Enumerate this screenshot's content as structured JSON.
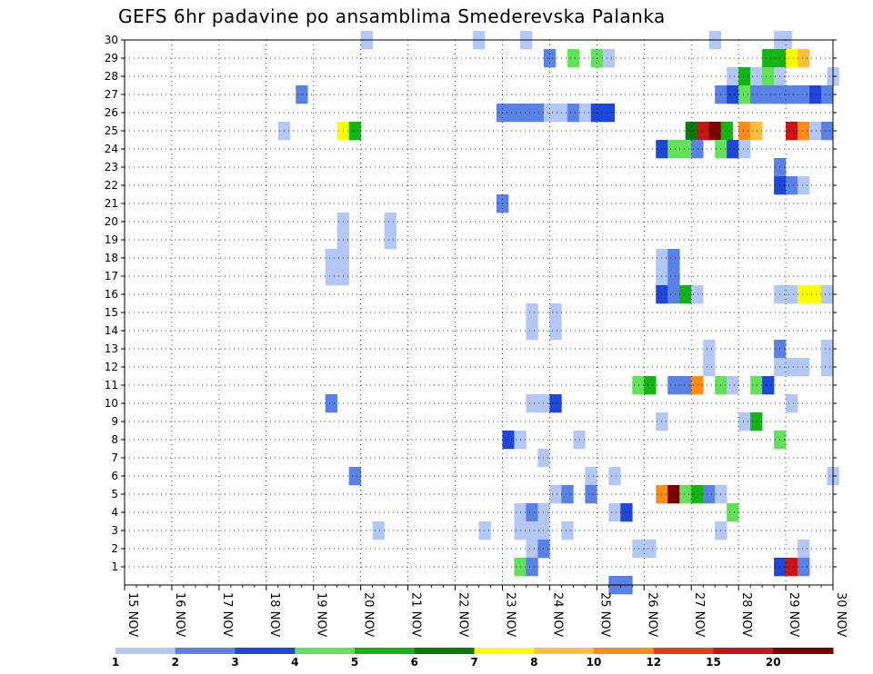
{
  "chart_data": {
    "type": "heatmap",
    "title": "GEFS 6hr padavine po ansamblima Smederevska Palanka",
    "y_ticks": [
      1,
      2,
      3,
      4,
      5,
      6,
      7,
      8,
      9,
      10,
      11,
      12,
      13,
      14,
      15,
      16,
      17,
      18,
      19,
      20,
      21,
      22,
      23,
      24,
      25,
      26,
      27,
      28,
      29,
      30
    ],
    "x_ticks": [
      "15 NOV",
      "16 NOV",
      "17 NOV",
      "18 NOV",
      "19 NOV",
      "20 NOV",
      "21 NOV",
      "22 NOV",
      "23 NOV",
      "24 NOV",
      "25 NOV",
      "26 NOV",
      "27 NOV",
      "28 NOV",
      "29 NOV",
      "30 NOV"
    ],
    "x_start_day": 15,
    "x_end_day": 30,
    "y_range": [
      0,
      30
    ],
    "grid": true,
    "colorbar": {
      "labels": [
        "1",
        "2",
        "3",
        "4",
        "5",
        "6",
        "7",
        "8",
        "10",
        "12",
        "15",
        "20"
      ],
      "colors": [
        "#b4c8f8",
        "#5a82e6",
        "#1e46d7",
        "#64e15a",
        "#14b414",
        "#0a780a",
        "#ffff00",
        "#ffbe3c",
        "#ff8c14",
        "#e63c14",
        "#c81414",
        "#780000"
      ]
    },
    "cells": [
      {
        "day": 20.125,
        "m": 30,
        "v": 1
      },
      {
        "day": 22.5,
        "m": 30,
        "v": 1
      },
      {
        "day": 23.5,
        "m": 30,
        "v": 1
      },
      {
        "day": 27.5,
        "m": 30,
        "v": 1
      },
      {
        "day": 28.875,
        "m": 30,
        "v": 1
      },
      {
        "day": 29,
        "m": 30,
        "v": 1
      },
      {
        "day": 24,
        "m": 29,
        "v": 2
      },
      {
        "day": 24.5,
        "m": 29,
        "v": 4
      },
      {
        "day": 25,
        "m": 29,
        "v": 4
      },
      {
        "day": 25.25,
        "m": 29,
        "v": 1
      },
      {
        "day": 28.625,
        "m": 29,
        "v": 5
      },
      {
        "day": 28.875,
        "m": 29,
        "v": 5
      },
      {
        "day": 29,
        "m": 29,
        "v": 5
      },
      {
        "day": 29.125,
        "m": 29,
        "v": 7
      },
      {
        "day": 29.375,
        "m": 29,
        "v": 8
      },
      {
        "day": 27.875,
        "m": 28,
        "v": 1
      },
      {
        "day": 28.125,
        "m": 28,
        "v": 5
      },
      {
        "day": 28.375,
        "m": 28,
        "v": 1
      },
      {
        "day": 28.625,
        "m": 28,
        "v": 4
      },
      {
        "day": 28.875,
        "m": 28,
        "v": 1
      },
      {
        "day": 30,
        "m": 28,
        "v": 1
      },
      {
        "day": 18.75,
        "m": 27,
        "v": 2
      },
      {
        "day": 27.625,
        "m": 27,
        "v": 2
      },
      {
        "day": 27.875,
        "m": 27,
        "v": 3
      },
      {
        "day": 28.125,
        "m": 27,
        "v": 4
      },
      {
        "day": 28.375,
        "m": 27,
        "v": 2
      },
      {
        "day": 28.625,
        "m": 27,
        "v": 2
      },
      {
        "day": 28.875,
        "m": 27,
        "v": 2
      },
      {
        "day": 29.125,
        "m": 27,
        "v": 2
      },
      {
        "day": 29.375,
        "m": 27,
        "v": 2
      },
      {
        "day": 29.625,
        "m": 27,
        "v": 3
      },
      {
        "day": 29.875,
        "m": 27,
        "v": 2
      },
      {
        "day": 23,
        "m": 26,
        "v": 2
      },
      {
        "day": 23.25,
        "m": 26,
        "v": 2
      },
      {
        "day": 23.5,
        "m": 26,
        "v": 2
      },
      {
        "day": 23.75,
        "m": 26,
        "v": 2
      },
      {
        "day": 24,
        "m": 26,
        "v": 1
      },
      {
        "day": 24.25,
        "m": 26,
        "v": 1
      },
      {
        "day": 24.5,
        "m": 26,
        "v": 2
      },
      {
        "day": 24.75,
        "m": 26,
        "v": 1
      },
      {
        "day": 25,
        "m": 26,
        "v": 3
      },
      {
        "day": 25.25,
        "m": 26,
        "v": 3
      },
      {
        "day": 18.375,
        "m": 25,
        "v": 1
      },
      {
        "day": 19.625,
        "m": 25,
        "v": 7
      },
      {
        "day": 19.875,
        "m": 25,
        "v": 5
      },
      {
        "day": 27,
        "m": 25,
        "v": 6
      },
      {
        "day": 27.25,
        "m": 25,
        "v": 15
      },
      {
        "day": 27.5,
        "m": 25,
        "v": 20
      },
      {
        "day": 27.75,
        "m": 25,
        "v": 5
      },
      {
        "day": 28.125,
        "m": 25,
        "v": 10
      },
      {
        "day": 28.375,
        "m": 25,
        "v": 8
      },
      {
        "day": 29.125,
        "m": 25,
        "v": 15
      },
      {
        "day": 29.375,
        "m": 25,
        "v": 10
      },
      {
        "day": 29.625,
        "m": 25,
        "v": 1
      },
      {
        "day": 29.875,
        "m": 25,
        "v": 2
      },
      {
        "day": 26.375,
        "m": 24,
        "v": 3
      },
      {
        "day": 26.625,
        "m": 24,
        "v": 4
      },
      {
        "day": 26.875,
        "m": 24,
        "v": 4
      },
      {
        "day": 27.125,
        "m": 24,
        "v": 2
      },
      {
        "day": 27.625,
        "m": 24,
        "v": 4
      },
      {
        "day": 27.875,
        "m": 24,
        "v": 3
      },
      {
        "day": 28.125,
        "m": 24,
        "v": 1
      },
      {
        "day": 28.875,
        "m": 23,
        "v": 2
      },
      {
        "day": 28.875,
        "m": 22,
        "v": 3
      },
      {
        "day": 29.125,
        "m": 22,
        "v": 2
      },
      {
        "day": 29.375,
        "m": 22,
        "v": 1
      },
      {
        "day": 23,
        "m": 21,
        "v": 2
      },
      {
        "day": 19.625,
        "m": 20,
        "v": 1
      },
      {
        "day": 20.625,
        "m": 20,
        "v": 1
      },
      {
        "day": 19.625,
        "m": 19,
        "v": 1
      },
      {
        "day": 20.625,
        "m": 19,
        "v": 1
      },
      {
        "day": 19.375,
        "m": 18,
        "v": 1
      },
      {
        "day": 19.625,
        "m": 18,
        "v": 1
      },
      {
        "day": 26.375,
        "m": 18,
        "v": 1
      },
      {
        "day": 26.625,
        "m": 18,
        "v": 2
      },
      {
        "day": 19.375,
        "m": 17,
        "v": 1
      },
      {
        "day": 19.625,
        "m": 17,
        "v": 1
      },
      {
        "day": 26.375,
        "m": 17,
        "v": 1
      },
      {
        "day": 26.625,
        "m": 17,
        "v": 2
      },
      {
        "day": 26.375,
        "m": 16,
        "v": 3
      },
      {
        "day": 26.625,
        "m": 16,
        "v": 2
      },
      {
        "day": 26.875,
        "m": 16,
        "v": 5
      },
      {
        "day": 27.125,
        "m": 16,
        "v": 1
      },
      {
        "day": 28.875,
        "m": 16,
        "v": 1
      },
      {
        "day": 29.125,
        "m": 16,
        "v": 1
      },
      {
        "day": 29.375,
        "m": 16,
        "v": 7
      },
      {
        "day": 29.625,
        "m": 16,
        "v": 7
      },
      {
        "day": 29.875,
        "m": 16,
        "v": 1
      },
      {
        "day": 23.625,
        "m": 15,
        "v": 1
      },
      {
        "day": 24.125,
        "m": 15,
        "v": 1
      },
      {
        "day": 23.625,
        "m": 14,
        "v": 1
      },
      {
        "day": 24.125,
        "m": 14,
        "v": 1
      },
      {
        "day": 28.875,
        "m": 13,
        "v": 2
      },
      {
        "day": 27.375,
        "m": 13,
        "v": 1
      },
      {
        "day": 29.875,
        "m": 13,
        "v": 1
      },
      {
        "day": 27.375,
        "m": 12,
        "v": 1
      },
      {
        "day": 28.875,
        "m": 12,
        "v": 1
      },
      {
        "day": 29.125,
        "m": 12,
        "v": 1
      },
      {
        "day": 29.375,
        "m": 12,
        "v": 1
      },
      {
        "day": 29.875,
        "m": 12,
        "v": 1
      },
      {
        "day": 25.875,
        "m": 11,
        "v": 4
      },
      {
        "day": 26.125,
        "m": 11,
        "v": 5
      },
      {
        "day": 26.625,
        "m": 11,
        "v": 2
      },
      {
        "day": 26.875,
        "m": 11,
        "v": 2
      },
      {
        "day": 27.125,
        "m": 11,
        "v": 10
      },
      {
        "day": 27.625,
        "m": 11,
        "v": 4
      },
      {
        "day": 27.875,
        "m": 11,
        "v": 1
      },
      {
        "day": 28.375,
        "m": 11,
        "v": 4
      },
      {
        "day": 28.625,
        "m": 11,
        "v": 3
      },
      {
        "day": 19.375,
        "m": 10,
        "v": 2
      },
      {
        "day": 23.625,
        "m": 10,
        "v": 1
      },
      {
        "day": 23.875,
        "m": 10,
        "v": 1
      },
      {
        "day": 24.125,
        "m": 10,
        "v": 3
      },
      {
        "day": 29.125,
        "m": 10,
        "v": 1
      },
      {
        "day": 26.375,
        "m": 9,
        "v": 1
      },
      {
        "day": 28.125,
        "m": 9,
        "v": 1
      },
      {
        "day": 28.375,
        "m": 9,
        "v": 5
      },
      {
        "day": 23.125,
        "m": 8,
        "v": 3
      },
      {
        "day": 23.375,
        "m": 8,
        "v": 1
      },
      {
        "day": 24.625,
        "m": 8,
        "v": 1
      },
      {
        "day": 28.875,
        "m": 8,
        "v": 4
      },
      {
        "day": 23.875,
        "m": 7,
        "v": 1
      },
      {
        "day": 19.875,
        "m": 6,
        "v": 2
      },
      {
        "day": 24.875,
        "m": 6,
        "v": 1
      },
      {
        "day": 25.375,
        "m": 6,
        "v": 1
      },
      {
        "day": 30,
        "m": 6,
        "v": 1
      },
      {
        "day": 24.125,
        "m": 5,
        "v": 1
      },
      {
        "day": 24.375,
        "m": 5,
        "v": 2
      },
      {
        "day": 24.875,
        "m": 5,
        "v": 2
      },
      {
        "day": 26.375,
        "m": 5,
        "v": 10
      },
      {
        "day": 26.625,
        "m": 5,
        "v": 20
      },
      {
        "day": 26.875,
        "m": 5,
        "v": 4
      },
      {
        "day": 27.125,
        "m": 5,
        "v": 5
      },
      {
        "day": 27.375,
        "m": 5,
        "v": 2
      },
      {
        "day": 27.625,
        "m": 5,
        "v": 1
      },
      {
        "day": 23.375,
        "m": 4,
        "v": 1
      },
      {
        "day": 23.625,
        "m": 4,
        "v": 2
      },
      {
        "day": 23.875,
        "m": 4,
        "v": 1
      },
      {
        "day": 25.375,
        "m": 4,
        "v": 1
      },
      {
        "day": 25.625,
        "m": 4,
        "v": 3
      },
      {
        "day": 27.875,
        "m": 4,
        "v": 4
      },
      {
        "day": 20.375,
        "m": 3,
        "v": 1
      },
      {
        "day": 22.625,
        "m": 3,
        "v": 1
      },
      {
        "day": 23.375,
        "m": 3,
        "v": 1
      },
      {
        "day": 23.625,
        "m": 3,
        "v": 1
      },
      {
        "day": 23.875,
        "m": 3,
        "v": 1
      },
      {
        "day": 24.375,
        "m": 3,
        "v": 1
      },
      {
        "day": 27.625,
        "m": 3,
        "v": 1
      },
      {
        "day": 23.625,
        "m": 2,
        "v": 1
      },
      {
        "day": 23.875,
        "m": 2,
        "v": 2
      },
      {
        "day": 25.875,
        "m": 2,
        "v": 1
      },
      {
        "day": 26.125,
        "m": 2,
        "v": 1
      },
      {
        "day": 29.375,
        "m": 2,
        "v": 1
      },
      {
        "day": 23.375,
        "m": 1,
        "v": 4
      },
      {
        "day": 23.625,
        "m": 1,
        "v": 2
      },
      {
        "day": 28.875,
        "m": 1,
        "v": 3
      },
      {
        "day": 29.125,
        "m": 1,
        "v": 15
      },
      {
        "day": 29.375,
        "m": 1,
        "v": 2
      },
      {
        "day": 25.375,
        "m": 0,
        "v": 2
      },
      {
        "day": 25.625,
        "m": 0,
        "v": 2
      }
    ]
  }
}
